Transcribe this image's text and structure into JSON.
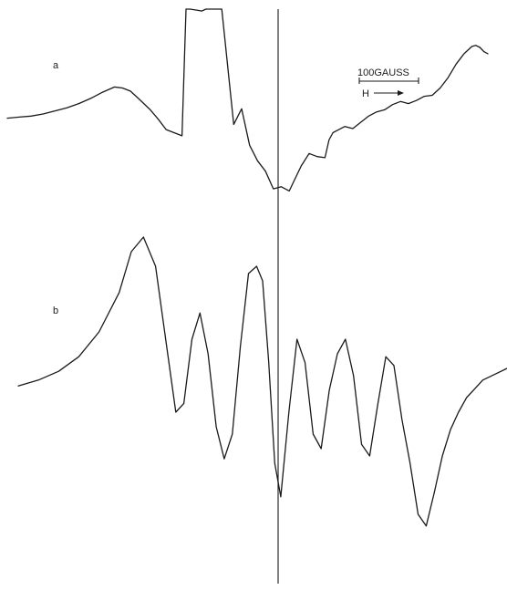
{
  "chart_data": {
    "type": "line",
    "title": "",
    "xlabel": "",
    "ylabel": "",
    "grid": false,
    "scale_bar": {
      "label": "100GAUSS",
      "field_label": "H"
    },
    "series": [
      {
        "name": "a",
        "x": [
          0,
          6,
          12,
          18,
          24,
          30,
          36,
          42,
          48,
          54,
          58,
          62,
          66,
          72,
          76,
          80,
          84,
          88,
          90,
          92,
          95,
          98,
          100,
          104,
          108,
          114,
          118,
          122,
          126,
          130,
          134,
          138,
          142,
          148,
          152,
          156,
          160,
          162,
          164,
          166,
          170,
          174,
          178,
          182,
          186,
          190,
          194,
          198,
          202,
          206,
          210,
          214,
          218,
          222,
          226,
          230,
          234,
          236,
          238,
          240,
          242
        ],
        "y": [
          -0.04,
          -0.03,
          -0.02,
          0.0,
          0.03,
          0.06,
          0.1,
          0.15,
          0.21,
          0.26,
          0.25,
          0.22,
          0.15,
          0.04,
          -0.05,
          -0.15,
          -0.18,
          -0.21,
          1.4,
          1.6,
          1.0,
          0.99,
          1.1,
          1.4,
          1.6,
          -0.1,
          0.05,
          -0.3,
          -0.45,
          -0.55,
          -0.72,
          -0.7,
          -0.74,
          -0.5,
          -0.38,
          -0.41,
          -0.42,
          -0.25,
          -0.18,
          -0.16,
          -0.12,
          -0.14,
          -0.08,
          -0.02,
          0.02,
          0.04,
          0.09,
          0.12,
          0.1,
          0.13,
          0.17,
          0.18,
          0.25,
          0.35,
          0.48,
          0.58,
          0.65,
          0.66,
          0.64,
          0.6,
          0.58
        ]
      },
      {
        "name": "b",
        "x": [
          0,
          10,
          20,
          30,
          40,
          50,
          56,
          62,
          68,
          74,
          78,
          82,
          86,
          90,
          94,
          98,
          102,
          106,
          110,
          114,
          118,
          121,
          124,
          127,
          130,
          134,
          138,
          142,
          146,
          150,
          154,
          158,
          162,
          166,
          170,
          174,
          178,
          182,
          186,
          190,
          194,
          198,
          202,
          206,
          210,
          214,
          218,
          222,
          226,
          230,
          236,
          242
        ],
        "y": [
          -0.02,
          0.02,
          0.08,
          0.18,
          0.35,
          0.62,
          0.9,
          1.0,
          0.8,
          0.2,
          -0.2,
          -0.14,
          0.3,
          0.48,
          0.2,
          -0.3,
          -0.52,
          -0.35,
          0.25,
          0.75,
          0.8,
          0.7,
          0.15,
          -0.55,
          -0.78,
          -0.2,
          0.3,
          0.14,
          -0.35,
          -0.45,
          -0.05,
          0.2,
          0.3,
          0.05,
          -0.42,
          -0.5,
          -0.15,
          0.18,
          0.12,
          -0.25,
          -0.55,
          -0.9,
          -0.98,
          -0.75,
          -0.5,
          -0.32,
          -0.2,
          -0.1,
          -0.04,
          0.02,
          0.06,
          0.1
        ]
      }
    ]
  }
}
